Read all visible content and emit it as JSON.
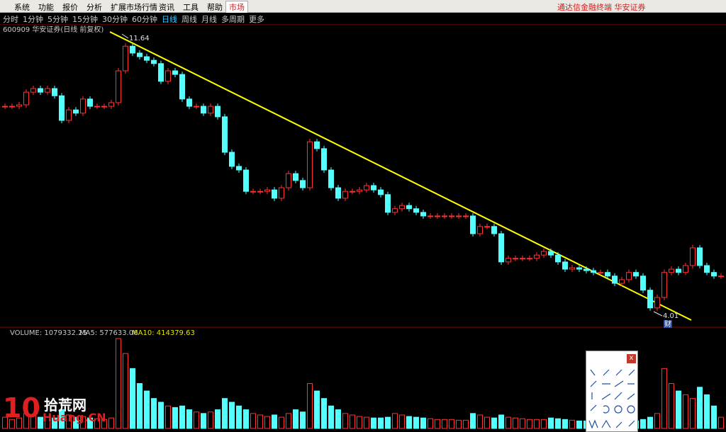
{
  "menu": [
    "系统",
    "功能",
    "报价",
    "分析",
    "扩展市场行情",
    "资讯",
    "工具",
    "帮助"
  ],
  "market_tab": "市场",
  "brand": "通达信金融终端  华安证券",
  "periods": [
    "分时",
    "1分钟",
    "5分钟",
    "15分钟",
    "30分钟",
    "60分钟",
    "日线",
    "周线",
    "月线",
    "多周期",
    "更多"
  ],
  "active_period_index": 6,
  "chart_data": {
    "type": "candlestick",
    "title": "600909 华安证券(日线 前复权)",
    "high_label": 11.64,
    "low_label": 4.01,
    "close": [
      9.78,
      9.78,
      9.82,
      10.17,
      10.27,
      10.17,
      10.27,
      10.07,
      9.39,
      9.68,
      9.59,
      9.98,
      9.78,
      9.78,
      9.78,
      9.88,
      10.76,
      11.44,
      11.25,
      11.15,
      11.05,
      10.96,
      10.47,
      10.76,
      10.66,
      9.98,
      9.78,
      9.78,
      9.59,
      9.78,
      9.49,
      8.51,
      8.12,
      8.02,
      7.43,
      7.43,
      7.43,
      7.47,
      7.24,
      7.53,
      7.92,
      7.73,
      7.53,
      8.8,
      8.61,
      8.02,
      7.53,
      7.24,
      7.43,
      7.43,
      7.47,
      7.59,
      7.47,
      7.34,
      6.85,
      6.95,
      7.04,
      6.95,
      6.85,
      6.75,
      6.75,
      6.75,
      6.75,
      6.75,
      6.75,
      6.75,
      6.26,
      6.46,
      6.46,
      6.26,
      5.48,
      5.58,
      5.58,
      5.58,
      5.58,
      5.67,
      5.77,
      5.67,
      5.48,
      5.28,
      5.32,
      5.28,
      5.24,
      5.19,
      5.19,
      5.09,
      4.89,
      4.99,
      5.19,
      5.09,
      4.7,
      4.21,
      4.5,
      5.19,
      5.28,
      5.19,
      5.38,
      5.87,
      5.38,
      5.19,
      5.09,
      5.09
    ],
    "volume": [
      1050000,
      840000,
      980000,
      1400000,
      1260000,
      1050000,
      1120000,
      980000,
      1750000,
      1260000,
      1050000,
      1120000,
      980000,
      910000,
      840000,
      980000,
      8400000,
      7000000,
      5600000,
      4200000,
      3500000,
      2800000,
      2450000,
      2100000,
      1960000,
      2100000,
      1750000,
      1540000,
      1400000,
      1540000,
      1750000,
      2800000,
      2450000,
      2100000,
      1750000,
      1400000,
      1260000,
      1120000,
      1260000,
      1050000,
      1400000,
      1750000,
      1540000,
      4200000,
      3500000,
      2800000,
      2100000,
      1750000,
      1400000,
      1260000,
      1120000,
      1050000,
      980000,
      980000,
      1050000,
      1400000,
      1260000,
      1120000,
      1050000,
      980000,
      910000,
      840000,
      840000,
      840000,
      770000,
      770000,
      1400000,
      1260000,
      1050000,
      980000,
      1260000,
      1050000,
      980000,
      910000,
      840000,
      840000,
      840000,
      980000,
      910000,
      840000,
      770000,
      700000,
      700000,
      700000,
      700000,
      700000,
      700000,
      840000,
      700000,
      700000,
      840000,
      1050000,
      1400000,
      5600000,
      4200000,
      3500000,
      3150000,
      2800000,
      3850000,
      3150000,
      2100000,
      1050000
    ],
    "volume_label": "VOLUME: 1079332.25",
    "ma5_label": "MA5: 577633.06",
    "ma10_label": "MA10: 414379.63",
    "up_color": "#ff3232",
    "down_color": "#54ffff",
    "trendline_color": "#ffff00"
  },
  "drawing_toolbar": {
    "close": "x"
  },
  "event_marker": "财",
  "watermark": {
    "number": "10",
    "cn": "拾荒网",
    "url": "Huang.CN"
  }
}
